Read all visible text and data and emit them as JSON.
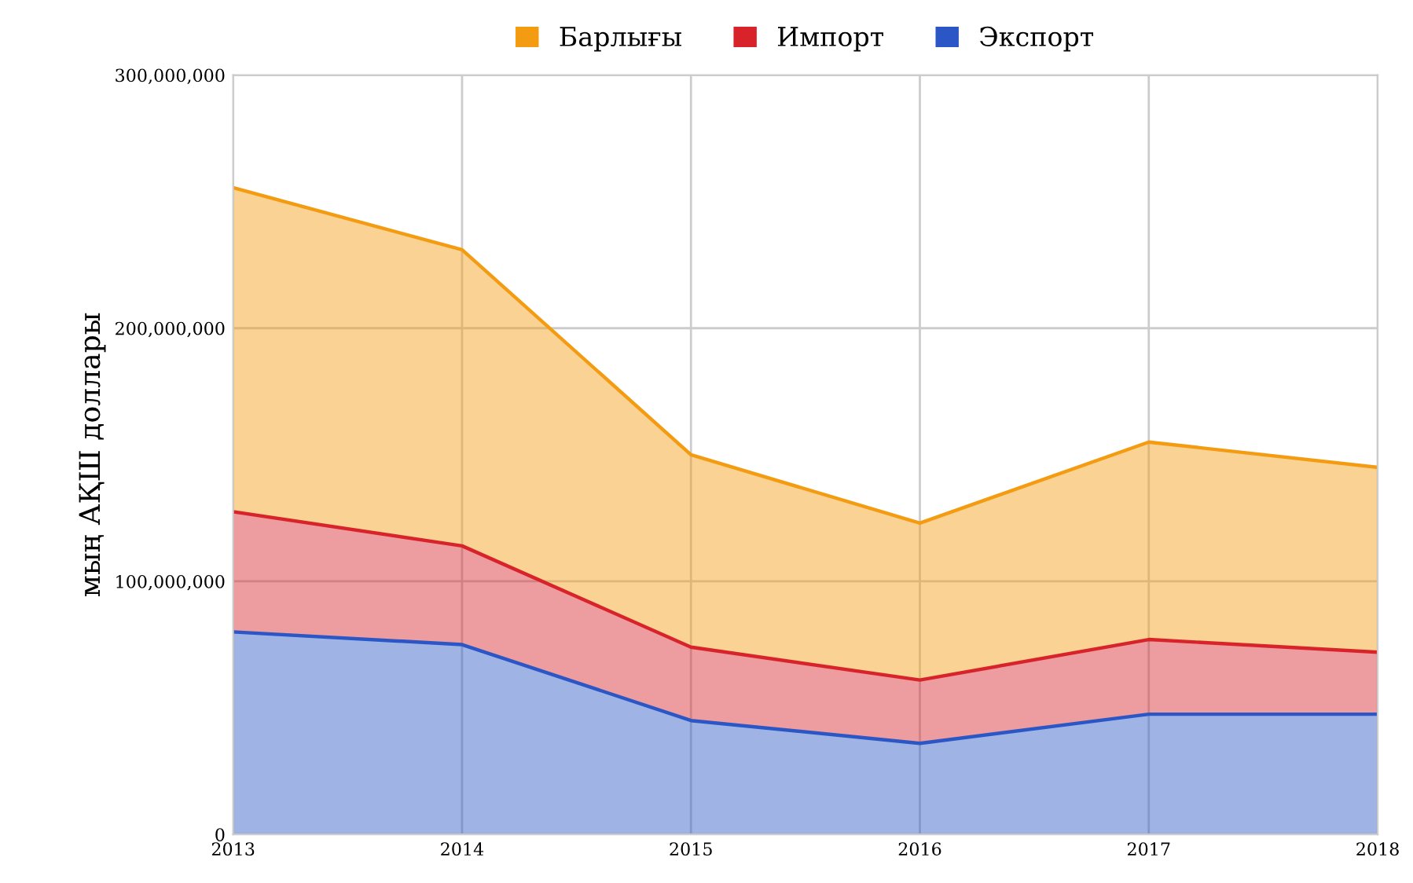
{
  "chart_data": {
    "type": "area",
    "stacked": true,
    "ylabel": "мың АҚШ доллары",
    "x": [
      2013,
      2014,
      2015,
      2016,
      2017,
      2018
    ],
    "series": [
      {
        "name": "Экспорт",
        "color": "#2a56c6",
        "values": [
          80000000,
          75000000,
          45000000,
          36000000,
          47500000,
          47500000
        ]
      },
      {
        "name": "Импорт",
        "color": "#d8232a",
        "values": [
          47500000,
          39000000,
          29000000,
          25000000,
          29500000,
          24500000
        ]
      },
      {
        "name": "Барлығы",
        "color": "#f39c12",
        "values": [
          128000000,
          117000000,
          76000000,
          62000000,
          78000000,
          73000000
        ]
      }
    ],
    "xlim": [
      2013,
      2018
    ],
    "xticks": [
      2013,
      2014,
      2015,
      2016,
      2017,
      2018
    ],
    "ylim": [
      0,
      300000000
    ],
    "yticks": [
      {
        "value": 0,
        "label": "0"
      },
      {
        "value": 100000000,
        "label": "100,000,000"
      },
      {
        "value": 200000000,
        "label": "200,000,000"
      },
      {
        "value": 300000000,
        "label": "300,000,000"
      }
    ],
    "grid": true,
    "legend": "top"
  }
}
